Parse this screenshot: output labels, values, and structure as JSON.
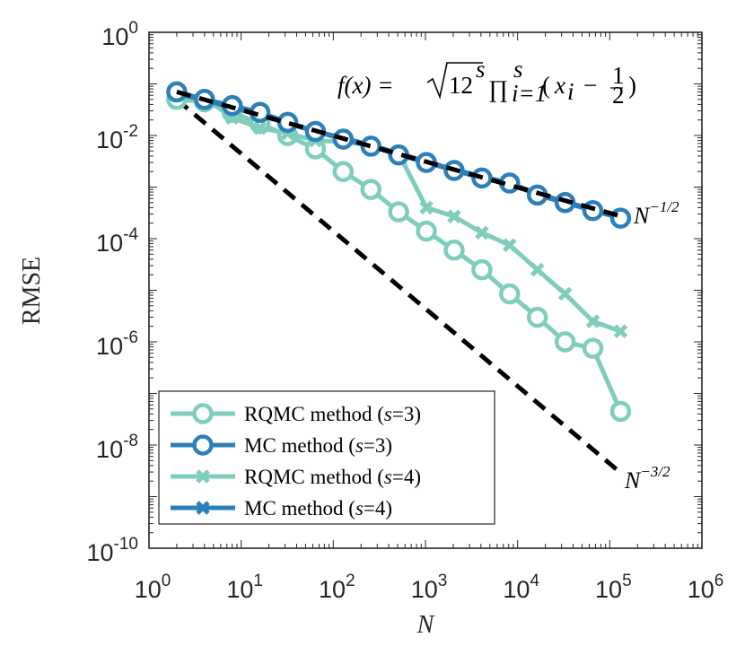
{
  "chart_data": {
    "type": "line",
    "xscale": "log",
    "yscale": "log",
    "xlim": [
      1,
      1000000
    ],
    "ylim": [
      1e-10,
      1
    ],
    "xlabel": "N",
    "ylabel": "RMSE",
    "grid": false,
    "legend_position": "bottom-left",
    "x_ticks": [
      {
        "base": "10",
        "exp": "0",
        "value": 1
      },
      {
        "base": "10",
        "exp": "1",
        "value": 10
      },
      {
        "base": "10",
        "exp": "2",
        "value": 100
      },
      {
        "base": "10",
        "exp": "3",
        "value": 1000
      },
      {
        "base": "10",
        "exp": "4",
        "value": 10000
      },
      {
        "base": "10",
        "exp": "5",
        "value": 100000
      },
      {
        "base": "10",
        "exp": "6",
        "value": 1000000
      }
    ],
    "y_ticks": [
      {
        "base": "10",
        "exp": "0",
        "value": 1
      },
      {
        "base": "10",
        "exp": "-2",
        "value": 0.01
      },
      {
        "base": "10",
        "exp": "-4",
        "value": 0.0001
      },
      {
        "base": "10",
        "exp": "-6",
        "value": 1e-06
      },
      {
        "base": "10",
        "exp": "-8",
        "value": 1e-08
      },
      {
        "base": "10",
        "exp": "-10",
        "value": 1e-10
      }
    ],
    "x": [
      2,
      4,
      8,
      16,
      32,
      64,
      128,
      256,
      512,
      1024,
      2048,
      4096,
      8192,
      16384,
      32768,
      65536,
      131072
    ],
    "series": [
      {
        "name": "RQMC method (s=3)",
        "label_prefix": "RQMC method (",
        "label_var": "s",
        "label_suffix": "=3)",
        "color": "#7fcdbb",
        "marker": "circle",
        "values": [
          0.05,
          0.045,
          0.028,
          0.017,
          0.01,
          0.0055,
          0.002,
          0.0009,
          0.00033,
          0.00014,
          6e-05,
          2.5e-05,
          8.5e-06,
          3e-06,
          1e-06,
          7.5e-07,
          4.5e-08
        ]
      },
      {
        "name": "MC method (s=3)",
        "label_prefix": "MC method (",
        "label_var": "s",
        "label_suffix": "=3)",
        "color": "#2c7fb8",
        "marker": "circle",
        "values": [
          0.07,
          0.05,
          0.038,
          0.028,
          0.018,
          0.012,
          0.0085,
          0.0062,
          0.0042,
          0.003,
          0.0021,
          0.0015,
          0.0012,
          0.0007,
          0.0005,
          0.00035,
          0.00025
        ]
      },
      {
        "name": "RQMC method (s=4)",
        "label_prefix": "RQMC method (",
        "label_var": "s",
        "label_suffix": "=4)",
        "color": "#7fcdbb",
        "marker": "x",
        "values": [
          0.06,
          0.055,
          0.022,
          0.014,
          0.011,
          0.008,
          0.0075,
          0.0065,
          0.0045,
          0.0004,
          0.00027,
          0.00013,
          7.5e-05,
          2.5e-05,
          8.5e-06,
          2.5e-06,
          1.6e-06
        ]
      },
      {
        "name": "MC method (s=4)",
        "label_prefix": "MC method (",
        "label_var": "s",
        "label_suffix": "=4)",
        "color": "#2c7fb8",
        "marker": "x",
        "values": [
          0.065,
          0.048,
          0.035,
          0.025,
          0.017,
          0.012,
          0.009,
          0.0065,
          0.0045,
          0.0031,
          0.0022,
          0.0016,
          0.0012,
          0.00075,
          0.00052,
          0.00037,
          0.00026
        ]
      }
    ],
    "reference_lines": [
      {
        "name": "N^-1/2",
        "label_base": "N",
        "label_exp": "−1/2",
        "x": [
          2,
          131072
        ],
        "values": [
          0.07,
          0.000273
        ]
      },
      {
        "name": "N^-3/2",
        "label_base": "N",
        "label_exp": "−3/2",
        "x": [
          2,
          131072
        ],
        "values": [
          0.05,
          2.9e-09
        ]
      }
    ],
    "formula": {
      "lhs": "f(x) = ",
      "sqrt_body": "12",
      "sqrt_exp": "s",
      "prod": "∏",
      "prod_upper": "s",
      "prod_lower": "i=1",
      "body": " (x",
      "body_sub": "i",
      "body_rest": " − ½)"
    }
  }
}
